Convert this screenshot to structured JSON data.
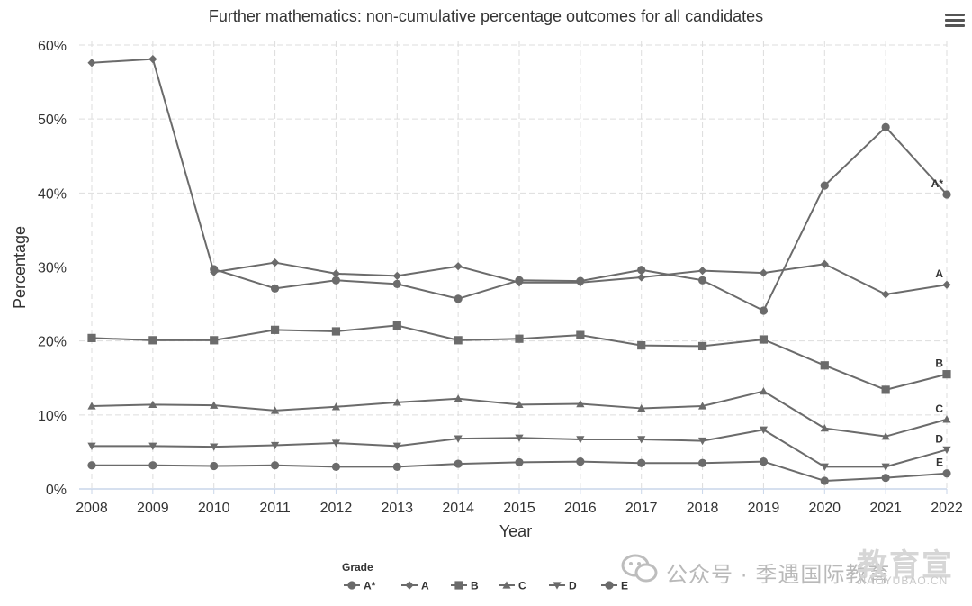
{
  "chart_data": {
    "type": "line",
    "title": "Further mathematics: non-cumulative percentage outcomes for all candidates",
    "xlabel": "Year",
    "ylabel": "Percentage",
    "x": [
      2008,
      2009,
      2010,
      2011,
      2012,
      2013,
      2014,
      2015,
      2016,
      2017,
      2018,
      2019,
      2020,
      2021,
      2022
    ],
    "ylim": [
      0,
      60
    ],
    "yticks": [
      "0%",
      "10%",
      "20%",
      "30%",
      "40%",
      "50%",
      "60%"
    ],
    "grid": "dashed",
    "legend": {
      "title": "Grade",
      "position": "bottom-center"
    },
    "series": [
      {
        "name": "A*",
        "marker": "circle",
        "values": [
          null,
          null,
          29.7,
          27.1,
          28.2,
          27.7,
          25.7,
          28.2,
          28.1,
          29.6,
          28.2,
          24.1,
          41.0,
          48.9,
          39.8
        ]
      },
      {
        "name": "A",
        "marker": "diamond",
        "values": [
          57.6,
          58.1,
          29.3,
          30.6,
          29.1,
          28.8,
          30.1,
          27.9,
          27.9,
          28.6,
          29.5,
          29.2,
          30.4,
          26.3,
          27.6
        ]
      },
      {
        "name": "B",
        "marker": "square",
        "values": [
          20.4,
          20.1,
          20.1,
          21.5,
          21.3,
          22.1,
          20.1,
          20.3,
          20.8,
          19.4,
          19.3,
          20.2,
          16.7,
          13.4,
          15.5
        ]
      },
      {
        "name": "C",
        "marker": "triangle",
        "values": [
          11.2,
          11.4,
          11.3,
          10.6,
          11.1,
          11.7,
          12.2,
          11.4,
          11.5,
          10.9,
          11.2,
          13.2,
          8.2,
          7.1,
          9.4
        ]
      },
      {
        "name": "D",
        "marker": "triangle-down",
        "values": [
          5.8,
          5.8,
          5.7,
          5.9,
          6.2,
          5.8,
          6.8,
          6.9,
          6.7,
          6.7,
          6.5,
          8.0,
          3.0,
          3.0,
          5.3
        ]
      },
      {
        "name": "E",
        "marker": "circle",
        "values": [
          3.2,
          3.2,
          3.1,
          3.2,
          3.0,
          3.0,
          3.4,
          3.6,
          3.7,
          3.5,
          3.5,
          3.7,
          1.1,
          1.5,
          2.1
        ]
      }
    ],
    "colors": {
      "line": "#6b6b6b",
      "grid": "#dddddd",
      "axis": "#c9d6ea",
      "text": "#333333"
    }
  },
  "watermark": {
    "text": "公众号 · 季遇国际教育",
    "logo": "教育宣",
    "url": "JIAOYUBAO.CN"
  }
}
